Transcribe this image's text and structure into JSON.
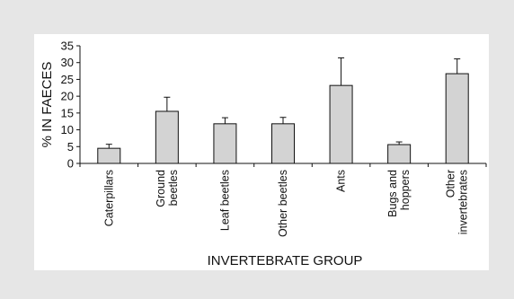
{
  "chart_data": {
    "type": "bar",
    "categories": [
      [
        "Caterpillars"
      ],
      [
        "Ground",
        "beetles"
      ],
      [
        "Leaf beetles"
      ],
      [
        "Other beetles"
      ],
      [
        "Ants"
      ],
      [
        "Bugs and",
        "hoppers"
      ],
      [
        "Other",
        "invertebrates"
      ]
    ],
    "values": [
      4.5,
      15.5,
      11.8,
      11.8,
      23.2,
      5.6,
      26.7
    ],
    "error_upper": [
      1.2,
      4.2,
      1.8,
      1.9,
      8.2,
      0.8,
      4.4
    ],
    "xlabel": "INVERTEBRATE GROUP",
    "ylabel": "% IN FAECES",
    "ylim": [
      0,
      35
    ],
    "yticks": [
      0,
      5,
      10,
      15,
      20,
      25,
      30,
      35
    ],
    "grid": false,
    "bar_color": "#d3d3d3",
    "frame_color": "#e6e6e6"
  }
}
